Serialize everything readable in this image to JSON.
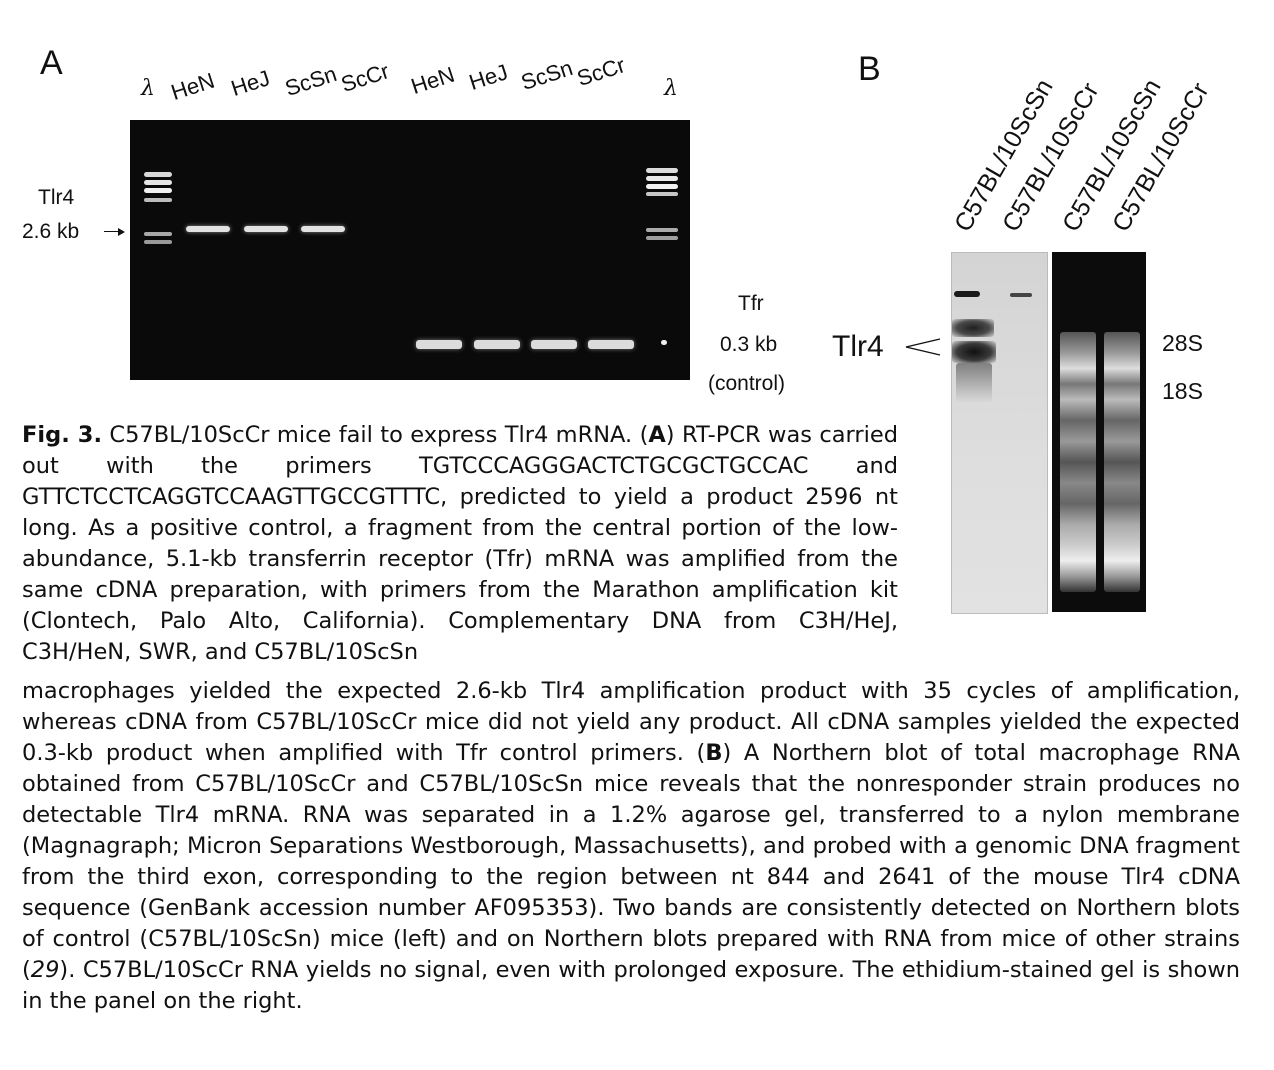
{
  "panel_a": {
    "letter": "A",
    "lanes": [
      "λ",
      "HeN",
      "HeJ",
      "ScSn",
      "ScCr",
      "HeN",
      "HeJ",
      "ScSn",
      "ScCr",
      "λ"
    ],
    "tlr4_label": "Tlr4",
    "tlr4_size": "2.6 kb",
    "tfr_label": "Tfr",
    "tfr_size": "0.3 kb",
    "tfr_note": "(control)"
  },
  "panel_b": {
    "letter": "B",
    "lanes": [
      "C57BL/10ScSn",
      "C57BL/10ScCr",
      "C57BL/10ScSn",
      "C57BL/10ScCr"
    ],
    "tlr4_label": "Tlr4",
    "marker_28s": "28S",
    "marker_18s": "18S"
  },
  "caption": {
    "fig_label": "Fig. 3.",
    "title": " C57BL/10ScCr mice fail to express Tlr4 mRNA. (",
    "a_letter": "A",
    "text_a": ") RT-PCR was carried out with the primers TGTCCCAGGGACTCTGCGCTGCCAC and GTTCTCCTCAGGTCCAAGTTGCCGTTTC, predicted to yield a product 2596 nt long. As a positive control, a fragment from the central portion of the low-abundance, 5.1-kb transferrin receptor (Tfr) mRNA was amplified from the same cDNA preparation, with primers from the Marathon amplification kit (Clontech, Palo Alto, California). Complementary DNA from C3H/HeJ, C3H/HeN, SWR, and C57BL/10ScSn",
    "text_a2": "macrophages yielded the expected 2.6-kb Tlr4 amplification product with 35 cycles of amplification, whereas cDNA from C57BL/10ScCr mice did not yield any product. All cDNA samples yielded the expected 0.3-kb product when amplified with Tfr control primers. (",
    "b_letter": "B",
    "text_b": ") A Northern blot of total macrophage RNA obtained from C57BL/10ScCr and C57BL/10ScSn mice reveals that the nonresponder strain produces no detectable Tlr4 mRNA. RNA was separated in a 1.2% agarose gel, transferred to a nylon membrane (Magnagraph; Micron Separations Westborough, Massachusetts), and probed with a genomic DNA fragment from the third exon, corresponding to the region between nt 844 and 2641 of the mouse Tlr4 cDNA sequence (GenBank accession number AF095353). Two bands are consistently detected on Northern blots of control (C57BL/10ScSn) mice (left) and on Northern blots prepared with RNA from mice of other strains (",
    "ref": "29",
    "text_end": "). C57BL/10ScCr RNA yields no signal, even with prolonged exposure. The ethidium-stained gel is shown in the panel on the right."
  }
}
